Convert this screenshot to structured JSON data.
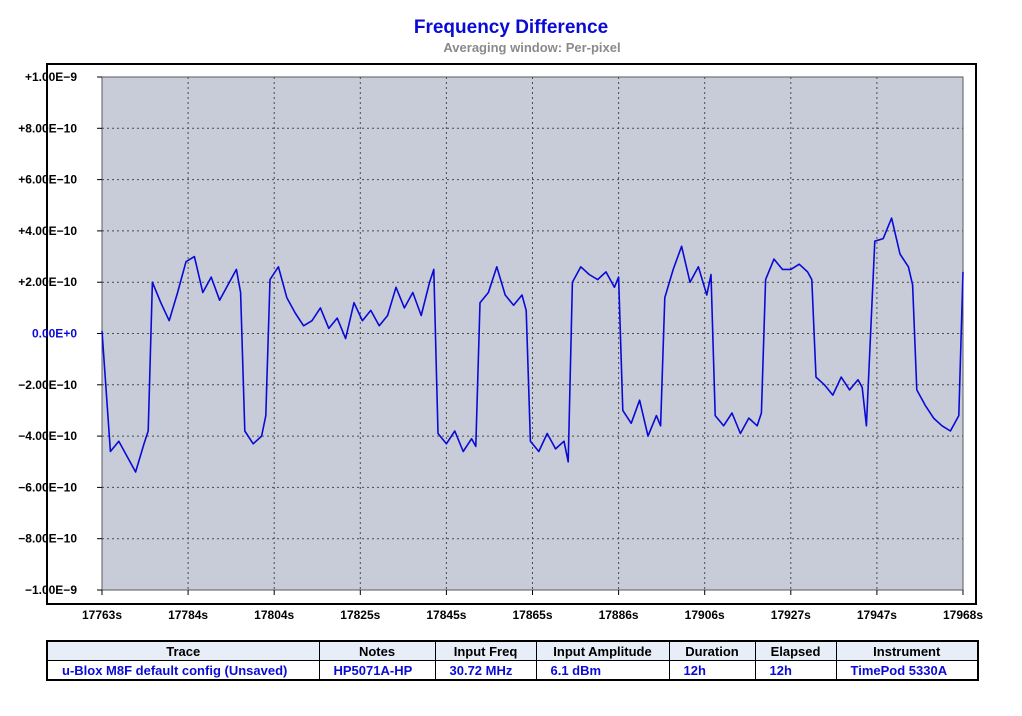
{
  "chart_data": {
    "type": "line",
    "title": "Frequency Difference",
    "subtitle": "Averaging window: Per-pixel",
    "xlabel": "",
    "ylabel": "",
    "xlim": [
      17763,
      17968
    ],
    "ylim": [
      -1e-09,
      1e-09
    ],
    "x_ticks": [
      "17763s",
      "17784s",
      "17804s",
      "17825s",
      "17845s",
      "17865s",
      "17886s",
      "17906s",
      "17927s",
      "17947s",
      "17968s"
    ],
    "y_ticks": [
      "+1.00E−9",
      "+8.00E−10",
      "+6.00E−10",
      "+4.00E−10",
      "+2.00E−10",
      "0.00E+0",
      "−2.00E−10",
      "−4.00E−10",
      "−6.00E−10",
      "−8.00E−10",
      "−1.00E−9"
    ],
    "grid": true,
    "series": [
      {
        "color": "#0a0ad6",
        "x": [
          17763,
          17765,
          17767,
          17769,
          17771,
          17773,
          17774,
          17775,
          17777,
          17779,
          17781,
          17783,
          17785,
          17787,
          17789,
          17791,
          17793,
          17795,
          17796,
          17797,
          17799,
          17801,
          17802,
          17803,
          17805,
          17807,
          17809,
          17811,
          17813,
          17815,
          17817,
          17819,
          17821,
          17823,
          17825,
          17827,
          17829,
          17831,
          17833,
          17835,
          17837,
          17839,
          17841,
          17842,
          17843,
          17845,
          17847,
          17849,
          17851,
          17852,
          17853,
          17855,
          17857,
          17859,
          17861,
          17863,
          17864,
          17865,
          17867,
          17869,
          17871,
          17873,
          17874,
          17875,
          17877,
          17879,
          17881,
          17883,
          17885,
          17886,
          17887,
          17889,
          17891,
          17893,
          17895,
          17896,
          17897,
          17899,
          17901,
          17903,
          17905,
          17907,
          17908,
          17909,
          17911,
          17913,
          17915,
          17917,
          17919,
          17920,
          17921,
          17923,
          17925,
          17927,
          17929,
          17931,
          17932,
          17933,
          17935,
          17937,
          17939,
          17941,
          17943,
          17944,
          17945,
          17947,
          17949,
          17951,
          17953,
          17955,
          17956,
          17957,
          17959,
          17961,
          17963,
          17965,
          17967,
          17968
        ],
        "y": [
          1e-11,
          -4.6e-10,
          -4.2e-10,
          -4.8e-10,
          -5.4e-10,
          -4.3e-10,
          -3.8e-10,
          2e-10,
          1.2e-10,
          5e-11,
          1.6e-10,
          2.8e-10,
          3e-10,
          1.6e-10,
          2.2e-10,
          1.3e-10,
          1.9e-10,
          2.5e-10,
          1.6e-10,
          -3.8e-10,
          -4.3e-10,
          -4e-10,
          -3.2e-10,
          2.1e-10,
          2.6e-10,
          1.4e-10,
          8e-11,
          3e-11,
          5e-11,
          1e-10,
          2e-11,
          6e-11,
          -2e-11,
          1.2e-10,
          5e-11,
          9e-11,
          3e-11,
          7e-11,
          1.8e-10,
          1e-10,
          1.6e-10,
          7e-11,
          2e-10,
          2.5e-10,
          -3.9e-10,
          -4.3e-10,
          -3.8e-10,
          -4.6e-10,
          -4.1e-10,
          -4.4e-10,
          1.2e-10,
          1.6e-10,
          2.6e-10,
          1.5e-10,
          1.1e-10,
          1.5e-10,
          9e-11,
          -4.2e-10,
          -4.6e-10,
          -3.9e-10,
          -4.5e-10,
          -4.2e-10,
          -5e-10,
          2e-10,
          2.6e-10,
          2.3e-10,
          2.1e-10,
          2.4e-10,
          1.8e-10,
          2.2e-10,
          -3e-10,
          -3.5e-10,
          -2.6e-10,
          -4e-10,
          -3.2e-10,
          -3.6e-10,
          1.4e-10,
          2.5e-10,
          3.4e-10,
          2e-10,
          2.6e-10,
          1.5e-10,
          2.3e-10,
          -3.2e-10,
          -3.6e-10,
          -3.1e-10,
          -3.9e-10,
          -3.3e-10,
          -3.6e-10,
          -3.1e-10,
          2.1e-10,
          2.9e-10,
          2.5e-10,
          2.5e-10,
          2.7e-10,
          2.4e-10,
          2.1e-10,
          -1.7e-10,
          -2e-10,
          -2.4e-10,
          -1.7e-10,
          -2.2e-10,
          -1.8e-10,
          -2.1e-10,
          -3.6e-10,
          3.6e-10,
          3.7e-10,
          4.5e-10,
          3.1e-10,
          2.6e-10,
          1.9e-10,
          -2.2e-10,
          -2.8e-10,
          -3.3e-10,
          -3.6e-10,
          -3.8e-10,
          -3.2e-10,
          2.4e-10
        ]
      }
    ]
  },
  "table": {
    "headers": [
      "Trace",
      "Notes",
      "Input Freq",
      "Input Amplitude",
      "Duration",
      "Elapsed",
      "Instrument"
    ],
    "row": [
      "u-Blox M8F default config (Unsaved)",
      "HP5071A-HP",
      "30.72 MHz",
      "6.1 dBm",
      "12h",
      "12h",
      "TimePod 5330A"
    ]
  }
}
